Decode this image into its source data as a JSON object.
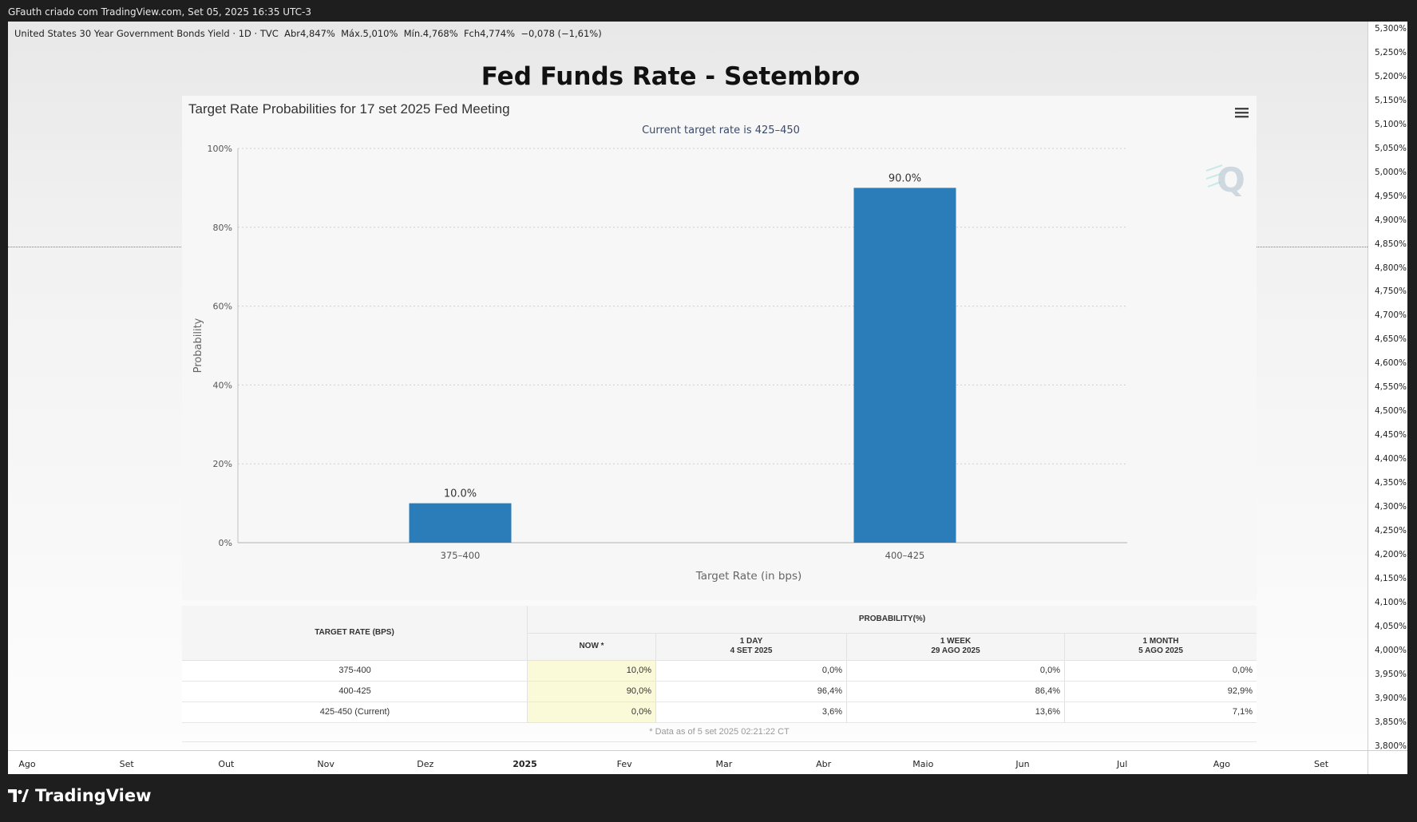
{
  "header": {
    "credit": "GFauth criado com TradingView.com, Set 05, 2025 16:35 UTC-3"
  },
  "symbol_line": "United States 30 Year Government Bonds Yield · 1D · TVC  Abr4,847%  Máx.5,010%  Mín.4,768%  Fch4,774%  −0,078 (−1,61%)",
  "overlay_title": "Fed Funds Rate - Setembro",
  "price_axis": [
    "5,300%",
    "5,250%",
    "5,200%",
    "5,150%",
    "5,100%",
    "5,050%",
    "5,000%",
    "4,950%",
    "4,900%",
    "4,850%",
    "4,800%",
    "4,750%",
    "4,700%",
    "4,650%",
    "4,600%",
    "4,550%",
    "4,500%",
    "4,450%",
    "4,400%",
    "4,350%",
    "4,300%",
    "4,250%",
    "4,200%",
    "4,150%",
    "4,100%",
    "4,050%",
    "4,000%",
    "3,950%",
    "3,900%",
    "3,850%",
    "3,800%"
  ],
  "time_axis": [
    {
      "label": "Ago",
      "bold": false
    },
    {
      "label": "Set",
      "bold": false
    },
    {
      "label": "Out",
      "bold": false
    },
    {
      "label": "Nov",
      "bold": false
    },
    {
      "label": "Dez",
      "bold": false
    },
    {
      "label": "2025",
      "bold": true
    },
    {
      "label": "Fev",
      "bold": false
    },
    {
      "label": "Mar",
      "bold": false
    },
    {
      "label": "Abr",
      "bold": false
    },
    {
      "label": "Maio",
      "bold": false
    },
    {
      "label": "Jun",
      "bold": false
    },
    {
      "label": "Jul",
      "bold": false
    },
    {
      "label": "Ago",
      "bold": false
    },
    {
      "label": "Set",
      "bold": false
    }
  ],
  "chart_data": {
    "type": "bar",
    "title": "Target Rate Probabilities for 17 set 2025 Fed Meeting",
    "subtitle": "Current target rate is 425–450",
    "categories": [
      "375–400",
      "400–425"
    ],
    "values": [
      10.0,
      90.0
    ],
    "data_labels": [
      "10.0%",
      "90.0%"
    ],
    "xlabel": "Target Rate (in bps)",
    "ylabel": "Probability",
    "ylim": [
      0,
      100
    ],
    "yticks": [
      "0%",
      "20%",
      "40%",
      "60%",
      "80%",
      "100%"
    ],
    "grid": true,
    "bar_color": "#2a7db8"
  },
  "table": {
    "col_target": "TARGET RATE (BPS)",
    "col_prob": "PROBABILITY(%)",
    "sub_now": "NOW *",
    "sub_day": [
      "1 DAY",
      "4 SET 2025"
    ],
    "sub_week": [
      "1 WEEK",
      "29 AGO 2025"
    ],
    "sub_month": [
      "1 MONTH",
      "5 AGO 2025"
    ],
    "rows": [
      {
        "rate": "375-400",
        "now": "10,0%",
        "day": "0,0%",
        "week": "0,0%",
        "month": "0,0%"
      },
      {
        "rate": "400-425",
        "now": "90,0%",
        "day": "96,4%",
        "week": "86,4%",
        "month": "92,9%"
      },
      {
        "rate": "425-450 (Current)",
        "now": "0,0%",
        "day": "3,6%",
        "week": "13,6%",
        "month": "7,1%"
      }
    ],
    "note": "* Data as of 5 set 2025 02:21:22 CT"
  },
  "brand": "TradingView"
}
